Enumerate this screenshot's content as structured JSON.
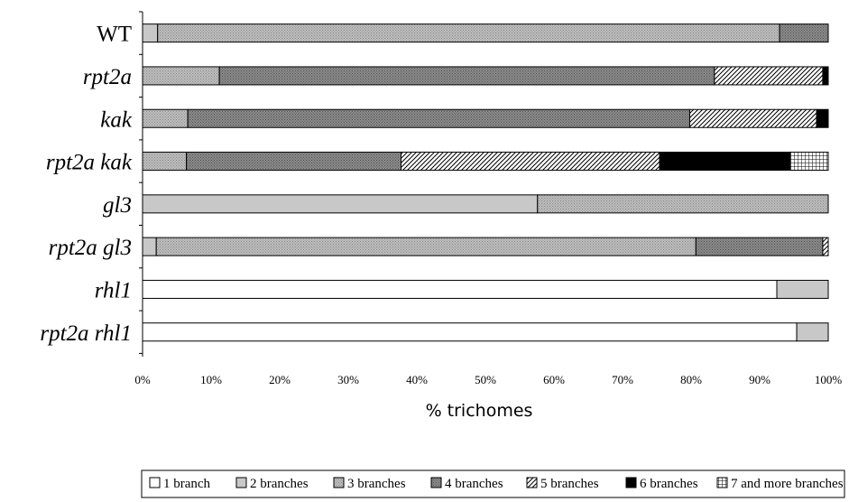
{
  "chart_data": {
    "type": "bar",
    "orientation": "horizontal",
    "stacked": "percent",
    "categories": [
      "WT",
      "rpt2a",
      "kak",
      "rpt2a kak",
      "gl3",
      "rpt2a gl3",
      "rhl1",
      "rpt2a rhl1"
    ],
    "category_italic": [
      false,
      true,
      true,
      true,
      true,
      true,
      true,
      true
    ],
    "series": [
      {
        "name": "1 branch",
        "color": "#ffffff",
        "pattern": "none",
        "values": [
          0,
          0,
          0,
          0,
          0,
          0,
          92.5,
          95.4
        ]
      },
      {
        "name": "2 branches",
        "color": "#c8c8c8",
        "pattern": "none",
        "values": [
          2.2,
          0,
          0,
          0,
          57.6,
          2.0,
          7.5,
          4.6
        ]
      },
      {
        "name": "3 branches",
        "color": "#b4b4b4",
        "pattern": "dots",
        "values": [
          90.7,
          11.2,
          6.6,
          6.4,
          42.4,
          78.7,
          0,
          0
        ]
      },
      {
        "name": "4 branches",
        "color": "#808080",
        "pattern": "dots",
        "values": [
          7.1,
          72.2,
          73.2,
          31.3,
          0,
          18.5,
          0,
          0
        ]
      },
      {
        "name": "5 branches",
        "color": "#ffffff",
        "pattern": "diag",
        "values": [
          0,
          15.8,
          18.5,
          37.7,
          0,
          0.8,
          0,
          0
        ]
      },
      {
        "name": "6 branches",
        "color": "#000000",
        "pattern": "none",
        "values": [
          0,
          0.8,
          1.7,
          19.1,
          0,
          0,
          0,
          0
        ]
      },
      {
        "name": "7 and more branches",
        "color": "#ffffff",
        "pattern": "grid",
        "values": [
          0,
          0,
          0,
          5.5,
          0,
          0,
          0,
          0
        ]
      }
    ],
    "xlabel": "% trichomes",
    "ylabel": "",
    "xlim": [
      0,
      100
    ],
    "xticks": [
      "0%",
      "10%",
      "20%",
      "30%",
      "40%",
      "50%",
      "60%",
      "70%",
      "80%",
      "90%",
      "100%"
    ],
    "legend_position": "bottom",
    "grid": false
  }
}
